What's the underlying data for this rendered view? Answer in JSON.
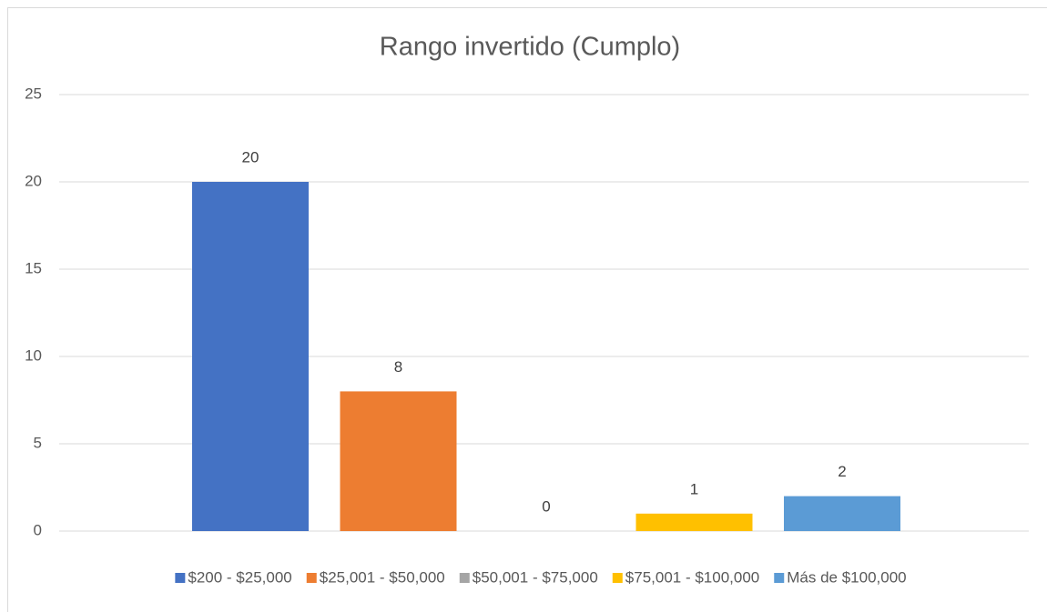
{
  "chart_data": {
    "type": "bar",
    "title": "Rango invertido (Cumplo)",
    "categories": [
      null
    ],
    "series": [
      {
        "name": "$200 - $25,000",
        "color": "#4472c4",
        "values": [
          20
        ]
      },
      {
        "name": "$25,001 - $50,000",
        "color": "#ed7d31",
        "values": [
          8
        ]
      },
      {
        "name": "$50,001 - $75,000",
        "color": "#a5a5a5",
        "values": [
          0
        ]
      },
      {
        "name": "$75,001 - $100,000",
        "color": "#ffc000",
        "values": [
          1
        ]
      },
      {
        "name": "Más de $100,000",
        "color": "#5b9bd5",
        "values": [
          2
        ]
      }
    ],
    "ylim": [
      0,
      25
    ],
    "yticks": [
      0,
      5,
      10,
      15,
      20,
      25
    ],
    "grid": true,
    "legend": "bottom"
  }
}
